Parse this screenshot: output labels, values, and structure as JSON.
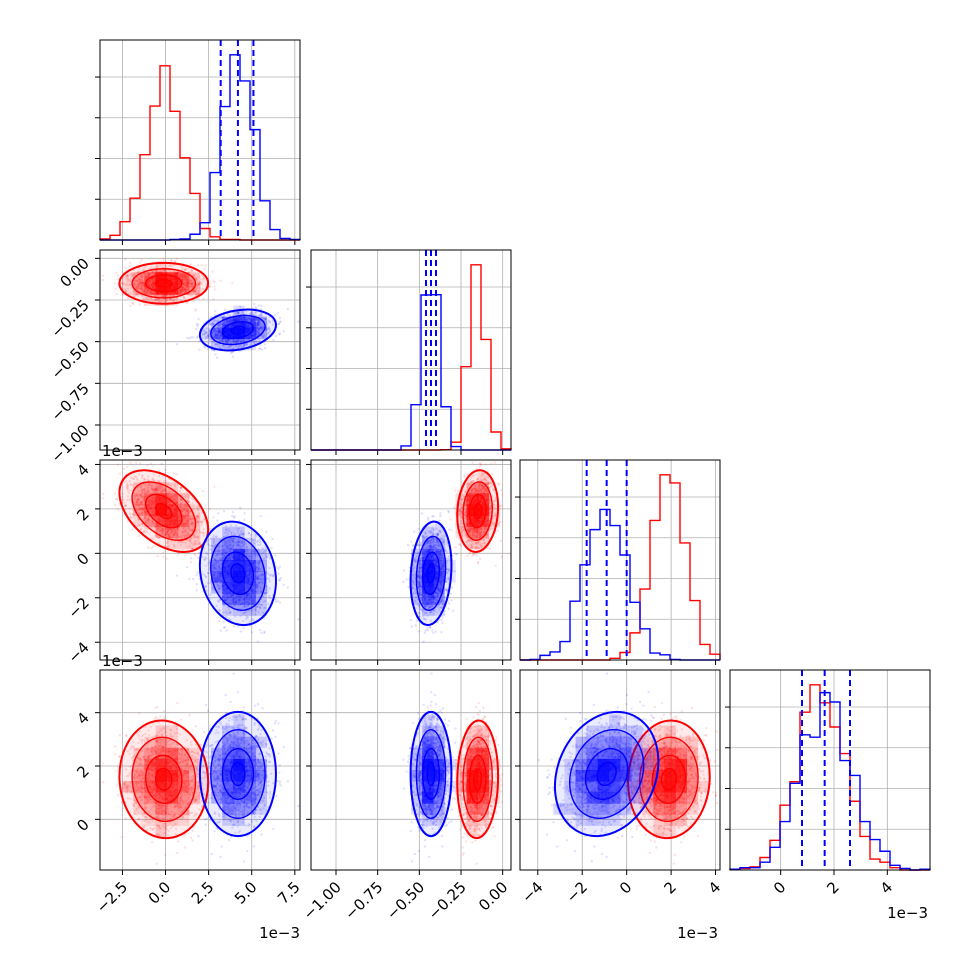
{
  "chart_data": {
    "type": "corner",
    "params": [
      {
        "id": "p0",
        "lim": [
          -3.8,
          7.8
        ],
        "ticks": [
          -2.5,
          0.0,
          2.5,
          5.0,
          7.5
        ],
        "tick_labels": [
          "−2.5",
          "0.0",
          "2.5",
          "5.0",
          "7.5"
        ],
        "offset_label": "1e−3"
      },
      {
        "id": "p1",
        "lim": [
          -1.15,
          0.05
        ],
        "ticks": [
          -1.0,
          -0.75,
          -0.5,
          -0.25,
          0.0
        ],
        "tick_labels": [
          "−1.00",
          "−0.75",
          "−0.50",
          "−0.25",
          "0.00"
        ],
        "offset_label": "1e−3"
      },
      {
        "id": "p2",
        "lim": [
          -4.8,
          4.2
        ],
        "ticks": [
          -4,
          -2,
          0,
          2,
          4
        ],
        "tick_labels": [
          "−4",
          "−2",
          "0",
          "2",
          "4"
        ],
        "offset_label": "1e−3"
      },
      {
        "id": "p3",
        "lim": [
          -1.9,
          5.6
        ],
        "ticks": [
          0,
          2,
          4
        ],
        "tick_labels": [
          "0",
          "2",
          "4"
        ],
        "offset_label": "1e−3"
      }
    ],
    "series": [
      {
        "color": "#ff0000",
        "mean": [
          -0.1,
          -0.15,
          1.9,
          1.5
        ],
        "std": [
          1.05,
          0.05,
          0.75,
          0.9
        ],
        "corr": [
          [
            1,
            0,
            -0.45,
            -0.05
          ],
          [
            0,
            1,
            0.1,
            0.05
          ],
          [
            -0.45,
            0.1,
            1,
            0.05
          ],
          [
            -0.05,
            0.05,
            0.05,
            1
          ]
        ]
      },
      {
        "color": "#0000ff",
        "mean": [
          4.2,
          -0.43,
          -0.9,
          1.7
        ],
        "std": [
          0.9,
          0.05,
          0.95,
          0.95
        ],
        "corr": [
          [
            1,
            0.25,
            -0.15,
            0.0
          ],
          [
            0.25,
            1,
            0.15,
            0.0
          ],
          [
            -0.15,
            0.15,
            1,
            0.2
          ],
          [
            0.0,
            0.0,
            0.2,
            1
          ]
        ]
      }
    ],
    "quantile_lines": {
      "color": "#0000ff",
      "p0": [
        3.2,
        4.2,
        5.1
      ],
      "p1": [
        -0.46,
        -0.43,
        -0.4
      ],
      "p2": [
        -1.8,
        -0.9,
        0.0
      ],
      "p3": [
        0.8,
        1.65,
        2.6
      ]
    },
    "grid": true
  }
}
